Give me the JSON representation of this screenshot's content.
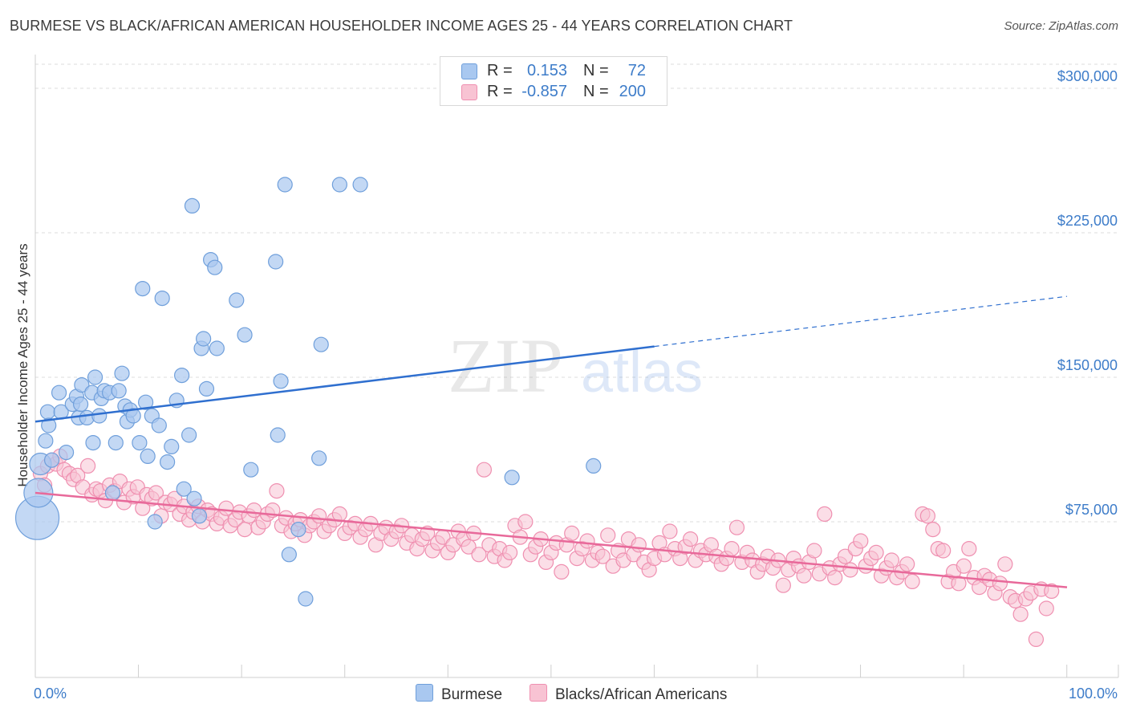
{
  "header": {
    "title": "BURMESE VS BLACK/AFRICAN AMERICAN HOUSEHOLDER INCOME AGES 25 - 44 YEARS CORRELATION CHART",
    "source": "Source: ZipAtlas.com"
  },
  "legend": {
    "rows": [
      {
        "r_label": "R =",
        "r_value": "0.153",
        "n_label": "N =",
        "n_value": "72"
      },
      {
        "r_label": "R =",
        "r_value": "-0.857",
        "n_label": "N =",
        "n_value": "200"
      }
    ]
  },
  "bottom_legend": {
    "series1": "Burmese",
    "series2": "Blacks/African Americans"
  },
  "watermark": {
    "zip": "ZIP",
    "atlas": "atlas"
  },
  "colors": {
    "burmese_fill": "#a9c8f0",
    "burmese_stroke": "#6f9fdb",
    "burmese_line": "#2f6fcf",
    "black_fill": "#f8c3d3",
    "black_stroke": "#ef8fb0",
    "black_line": "#e8699a",
    "axis_text": "#3d7cc9",
    "grid": "#dddddd"
  },
  "chart_data": {
    "type": "scatter",
    "title": "BURMESE VS BLACK/AFRICAN AMERICAN HOUSEHOLDER INCOME AGES 25 - 44 YEARS CORRELATION CHART",
    "xlabel": "",
    "ylabel": "Householder Income Ages 25 - 44 years",
    "xlim": [
      0,
      100
    ],
    "ylim": [
      0,
      312500
    ],
    "x_tick_labels": [
      "0.0%",
      "100.0%"
    ],
    "y_ticks": [
      75000,
      150000,
      225000,
      300000
    ],
    "y_tick_labels": [
      "$75,000",
      "$150,000",
      "$225,000",
      "$300,000"
    ],
    "grid": true,
    "legend_position": "top-center",
    "series": [
      {
        "name": "Burmese",
        "r": 0.153,
        "n": 72,
        "trend": {
          "x": [
            0,
            60
          ],
          "y": [
            127000,
            166000
          ],
          "dashed_extension_to": [
            100,
            192000
          ]
        },
        "points": [
          [
            0.2,
            77000,
            3
          ],
          [
            0.3,
            90000,
            2
          ],
          [
            0.5,
            105000,
            1.5
          ],
          [
            1,
            117000,
            1
          ],
          [
            1.2,
            132000,
            1
          ],
          [
            1.3,
            125000,
            1
          ],
          [
            1.6,
            107000,
            1
          ],
          [
            2.3,
            142000,
            1
          ],
          [
            2.5,
            132000,
            1
          ],
          [
            3,
            111000,
            1
          ],
          [
            3.6,
            136000,
            1
          ],
          [
            4,
            140000,
            1
          ],
          [
            4.2,
            129000,
            1
          ],
          [
            4.4,
            136000,
            1
          ],
          [
            4.5,
            146000,
            1
          ],
          [
            5,
            129000,
            1
          ],
          [
            5.5,
            142000,
            1
          ],
          [
            5.6,
            116000,
            1
          ],
          [
            5.8,
            150000,
            1
          ],
          [
            6.2,
            130000,
            1
          ],
          [
            6.4,
            139000,
            1
          ],
          [
            6.7,
            143000,
            1
          ],
          [
            7.2,
            142000,
            1
          ],
          [
            7.5,
            90000,
            1
          ],
          [
            7.8,
            116000,
            1
          ],
          [
            8.1,
            143000,
            1
          ],
          [
            8.4,
            152000,
            1
          ],
          [
            8.7,
            135000,
            1
          ],
          [
            8.9,
            127000,
            1
          ],
          [
            9.2,
            133000,
            1
          ],
          [
            9.5,
            130000,
            1
          ],
          [
            10.1,
            116000,
            1
          ],
          [
            10.4,
            196000,
            1
          ],
          [
            10.7,
            137000,
            1
          ],
          [
            10.9,
            109000,
            1
          ],
          [
            11.3,
            130000,
            1
          ],
          [
            11.6,
            75000,
            1
          ],
          [
            12,
            125000,
            1
          ],
          [
            12.3,
            191000,
            1
          ],
          [
            12.8,
            106000,
            1
          ],
          [
            13.2,
            114000,
            1
          ],
          [
            13.7,
            138000,
            1
          ],
          [
            14.2,
            151000,
            1
          ],
          [
            14.4,
            92000,
            1
          ],
          [
            14.9,
            120000,
            1
          ],
          [
            15.2,
            239000,
            1
          ],
          [
            15.4,
            87000,
            1
          ],
          [
            15.9,
            78000,
            1
          ],
          [
            16.1,
            165000,
            1
          ],
          [
            16.3,
            170000,
            1
          ],
          [
            16.6,
            144000,
            1
          ],
          [
            17,
            211000,
            1
          ],
          [
            17.4,
            207000,
            1
          ],
          [
            17.6,
            165000,
            1
          ],
          [
            19.5,
            190000,
            1
          ],
          [
            20.3,
            172000,
            1
          ],
          [
            20.9,
            102000,
            1
          ],
          [
            23.3,
            210000,
            1
          ],
          [
            23.5,
            120000,
            1
          ],
          [
            23.8,
            148000,
            1
          ],
          [
            24.2,
            250000,
            1
          ],
          [
            24.6,
            58000,
            1
          ],
          [
            25.5,
            71000,
            1
          ],
          [
            26.2,
            35000,
            1
          ],
          [
            27.5,
            108000,
            1
          ],
          [
            27.7,
            167000,
            1
          ],
          [
            29.5,
            250000,
            1
          ],
          [
            31.5,
            250000,
            1
          ],
          [
            46.2,
            98000,
            1
          ],
          [
            54.1,
            104000,
            1
          ]
        ]
      },
      {
        "name": "Blacks/African Americans",
        "r": -0.857,
        "n": 200,
        "trend": {
          "x": [
            0,
            100
          ],
          "y": [
            90000,
            41000
          ]
        },
        "points": [
          [
            0.5,
            100000
          ],
          [
            0.9,
            94000
          ],
          [
            1.2,
            104000
          ],
          [
            1.6,
            107000
          ],
          [
            2,
            105000
          ],
          [
            2.4,
            109000
          ],
          [
            2.8,
            102000
          ],
          [
            3.3,
            100000
          ],
          [
            3.7,
            97000
          ],
          [
            4.1,
            99000
          ],
          [
            4.6,
            93000
          ],
          [
            5.1,
            104000
          ],
          [
            5.5,
            89000
          ],
          [
            5.9,
            92000
          ],
          [
            6.3,
            91000
          ],
          [
            6.8,
            86000
          ],
          [
            7.2,
            94000
          ],
          [
            7.7,
            91000
          ],
          [
            8.2,
            96000
          ],
          [
            8.6,
            85000
          ],
          [
            9.1,
            92000
          ],
          [
            9.5,
            88000
          ],
          [
            9.9,
            93000
          ],
          [
            10.4,
            82000
          ],
          [
            10.8,
            89000
          ],
          [
            11.3,
            87000
          ],
          [
            11.7,
            90000
          ],
          [
            12.2,
            78000
          ],
          [
            12.6,
            85000
          ],
          [
            13.1,
            84000
          ],
          [
            13.5,
            87000
          ],
          [
            14,
            79000
          ],
          [
            14.4,
            83000
          ],
          [
            14.9,
            76000
          ],
          [
            15.3,
            80000
          ],
          [
            15.8,
            83000
          ],
          [
            16.2,
            75000
          ],
          [
            16.7,
            81000
          ],
          [
            17.1,
            79000
          ],
          [
            17.6,
            74000
          ],
          [
            18,
            77000
          ],
          [
            18.5,
            82000
          ],
          [
            18.9,
            73000
          ],
          [
            19.4,
            76000
          ],
          [
            19.8,
            80000
          ],
          [
            20.3,
            71000
          ],
          [
            20.7,
            78000
          ],
          [
            21.2,
            81000
          ],
          [
            21.6,
            72000
          ],
          [
            22.1,
            75000
          ],
          [
            22.5,
            79000
          ],
          [
            23,
            81000
          ],
          [
            23.4,
            91000
          ],
          [
            23.9,
            73000
          ],
          [
            24.3,
            77000
          ],
          [
            24.8,
            70000
          ],
          [
            25.2,
            74000
          ],
          [
            25.7,
            76000
          ],
          [
            26.1,
            68000
          ],
          [
            26.6,
            73000
          ],
          [
            27,
            75000
          ],
          [
            27.5,
            78000
          ],
          [
            28,
            70000
          ],
          [
            28.5,
            73000
          ],
          [
            29,
            76000
          ],
          [
            29.5,
            79000
          ],
          [
            30,
            69000
          ],
          [
            30.5,
            72000
          ],
          [
            31,
            74000
          ],
          [
            31.5,
            67000
          ],
          [
            32,
            71000
          ],
          [
            32.5,
            74000
          ],
          [
            33,
            63000
          ],
          [
            33.5,
            69000
          ],
          [
            34,
            72000
          ],
          [
            34.5,
            66000
          ],
          [
            35,
            70000
          ],
          [
            35.5,
            73000
          ],
          [
            36,
            64000
          ],
          [
            36.5,
            68000
          ],
          [
            37,
            61000
          ],
          [
            37.5,
            66000
          ],
          [
            38,
            69000
          ],
          [
            38.5,
            60000
          ],
          [
            39,
            64000
          ],
          [
            39.5,
            67000
          ],
          [
            40,
            59000
          ],
          [
            40.5,
            63000
          ],
          [
            41,
            70000
          ],
          [
            41.5,
            66000
          ],
          [
            42,
            62000
          ],
          [
            42.5,
            69000
          ],
          [
            43,
            58000
          ],
          [
            43.5,
            102000
          ],
          [
            44,
            63000
          ],
          [
            44.5,
            57000
          ],
          [
            45,
            61000
          ],
          [
            45.5,
            55000
          ],
          [
            46,
            59000
          ],
          [
            46.5,
            73000
          ],
          [
            47,
            67000
          ],
          [
            47.5,
            75000
          ],
          [
            48,
            58000
          ],
          [
            48.5,
            62000
          ],
          [
            49,
            66000
          ],
          [
            49.5,
            54000
          ],
          [
            50,
            59000
          ],
          [
            50.5,
            64000
          ],
          [
            51,
            49000
          ],
          [
            51.5,
            63000
          ],
          [
            52,
            69000
          ],
          [
            52.5,
            56000
          ],
          [
            53,
            61000
          ],
          [
            53.5,
            65000
          ],
          [
            54,
            55000
          ],
          [
            54.5,
            59000
          ],
          [
            55,
            57000
          ],
          [
            55.5,
            68000
          ],
          [
            56,
            52000
          ],
          [
            56.5,
            60000
          ],
          [
            57,
            55000
          ],
          [
            57.5,
            66000
          ],
          [
            58,
            58000
          ],
          [
            58.5,
            63000
          ],
          [
            59,
            54000
          ],
          [
            59.5,
            50000
          ],
          [
            60,
            56000
          ],
          [
            60.5,
            64000
          ],
          [
            61,
            58000
          ],
          [
            61.5,
            70000
          ],
          [
            62,
            61000
          ],
          [
            62.5,
            56000
          ],
          [
            63,
            62000
          ],
          [
            63.5,
            66000
          ],
          [
            64,
            55000
          ],
          [
            64.5,
            60000
          ],
          [
            65,
            58000
          ],
          [
            65.5,
            63000
          ],
          [
            66,
            57000
          ],
          [
            66.5,
            53000
          ],
          [
            67,
            56000
          ],
          [
            67.5,
            61000
          ],
          [
            68,
            72000
          ],
          [
            68.5,
            54000
          ],
          [
            69,
            59000
          ],
          [
            69.5,
            55000
          ],
          [
            70,
            49000
          ],
          [
            70.5,
            53000
          ],
          [
            71,
            57000
          ],
          [
            71.5,
            51000
          ],
          [
            72,
            55000
          ],
          [
            72.5,
            42000
          ],
          [
            73,
            50000
          ],
          [
            73.5,
            56000
          ],
          [
            74,
            52000
          ],
          [
            74.5,
            47000
          ],
          [
            75,
            54000
          ],
          [
            75.5,
            60000
          ],
          [
            76,
            48000
          ],
          [
            76.5,
            79000
          ],
          [
            77,
            51000
          ],
          [
            77.5,
            46000
          ],
          [
            78,
            53000
          ],
          [
            78.5,
            57000
          ],
          [
            79,
            50000
          ],
          [
            79.5,
            61000
          ],
          [
            80,
            65000
          ],
          [
            80.5,
            52000
          ],
          [
            81,
            56000
          ],
          [
            81.5,
            59000
          ],
          [
            82,
            47000
          ],
          [
            82.5,
            51000
          ],
          [
            83,
            55000
          ],
          [
            83.5,
            46000
          ],
          [
            84,
            49000
          ],
          [
            84.5,
            53000
          ],
          [
            85,
            44000
          ],
          [
            86,
            79000
          ],
          [
            86.5,
            78000
          ],
          [
            87,
            71000
          ],
          [
            87.5,
            61000
          ],
          [
            88,
            60000
          ],
          [
            88.5,
            44000
          ],
          [
            89,
            49000
          ],
          [
            89.5,
            43000
          ],
          [
            90,
            52000
          ],
          [
            90.5,
            61000
          ],
          [
            91,
            46000
          ],
          [
            91.5,
            41000
          ],
          [
            92,
            47000
          ],
          [
            92.5,
            45000
          ],
          [
            93,
            38000
          ],
          [
            93.5,
            43000
          ],
          [
            94,
            53000
          ],
          [
            94.5,
            36000
          ],
          [
            95,
            34000
          ],
          [
            95.5,
            27000
          ],
          [
            96,
            35000
          ],
          [
            96.5,
            38000
          ],
          [
            97,
            14000
          ],
          [
            97.5,
            40000
          ],
          [
            98,
            30000
          ],
          [
            98.5,
            39000
          ]
        ]
      }
    ]
  }
}
